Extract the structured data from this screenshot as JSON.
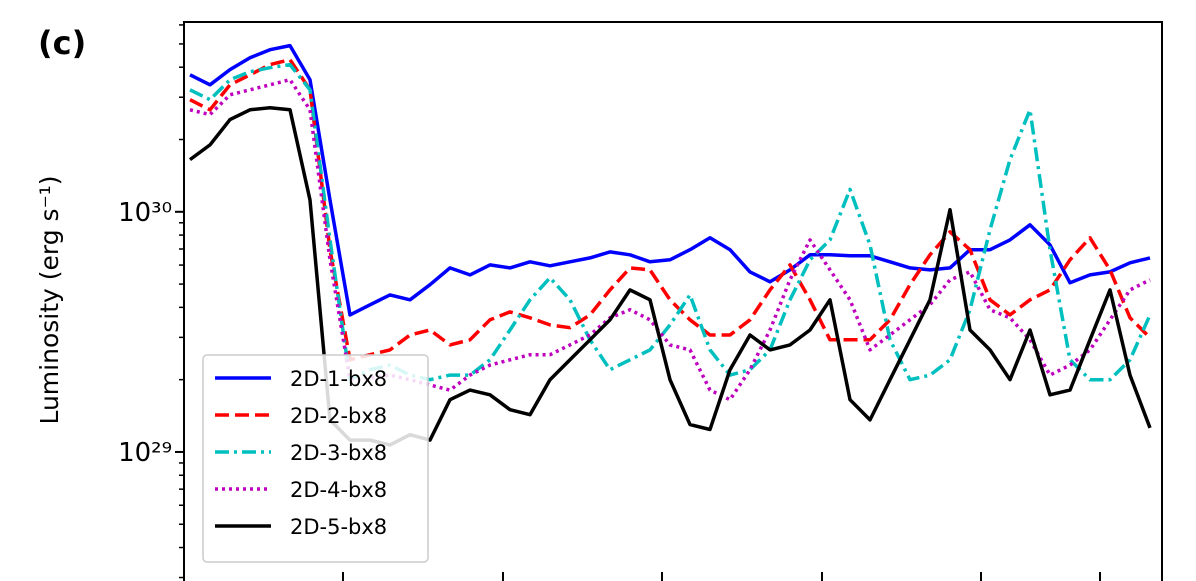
{
  "chart_data": {
    "type": "line",
    "title": "(c)",
    "ylabel": "Luminosity (erg s⁻¹)",
    "yscale": "log",
    "ylim": [
      2.93e+28,
      6.17e+30
    ],
    "yticks": [
      {
        "value": 1e+29,
        "label": "10²⁹"
      },
      {
        "value": 1e+30,
        "label": "10³⁰"
      }
    ],
    "legend": "lower left",
    "series": [
      {
        "name": "2D-1-bx8",
        "color": "#0000ff",
        "linestyle": "solid",
        "values": [
          3.72e+30,
          3.38e+30,
          3.91e+30,
          4.38e+30,
          4.73e+30,
          4.92e+30,
          3.55e+30,
          1.12e+30,
          3.72e+29,
          4.1e+29,
          4.51e+29,
          4.3e+29,
          4.97e+29,
          5.84e+29,
          5.46e+29,
          6.01e+29,
          5.84e+29,
          6.19e+29,
          5.96e+29,
          6.19e+29,
          6.43e+29,
          6.81e+29,
          6.62e+29,
          6.19e+29,
          6.31e+29,
          6.95e+29,
          7.79e+29,
          6.95e+29,
          5.62e+29,
          5.11e+29,
          5.73e+29,
          6.62e+29,
          6.62e+29,
          6.56e+29,
          6.56e+29,
          6.19e+29,
          5.84e+29,
          5.73e+29,
          5.84e+29,
          6.95e+29,
          6.95e+29,
          7.64e+29,
          8.83e+29,
          7.28e+29,
          5.06e+29,
          5.46e+29,
          5.62e+29,
          6.13e+29,
          6.43e+29
        ]
      },
      {
        "name": "2D-2-bx8",
        "color": "#ff0000",
        "linestyle": "dashed",
        "values": [
          2.93e+30,
          2.66e+30,
          3.38e+30,
          3.72e+30,
          4.1e+30,
          4.3e+30,
          3.22e+30,
          6.95e+29,
          2.42e+29,
          2.54e+29,
          2.66e+29,
          3.07e+29,
          3.22e+29,
          2.79e+29,
          2.93e+29,
          3.55e+29,
          3.83e+29,
          3.62e+29,
          3.38e+29,
          3.29e+29,
          3.72e+29,
          4.73e+29,
          5.84e+29,
          5.73e+29,
          4.3e+29,
          3.55e+29,
          3.07e+29,
          3.07e+29,
          3.55e+29,
          4.73e+29,
          6.01e+29,
          4.3e+29,
          2.93e+29,
          2.93e+29,
          2.93e+29,
          3.55e+29,
          4.97e+29,
          6.62e+29,
          8.25e+29,
          6.95e+29,
          4.3e+29,
          3.72e+29,
          4.3e+29,
          4.73e+29,
          6.31e+29,
          7.79e+29,
          5.73e+29,
          3.62e+29,
          2.99e+29
        ]
      },
      {
        "name": "2D-3-bx8",
        "color": "#00bfbf",
        "linestyle": "dashdot",
        "values": [
          3.22e+30,
          2.93e+30,
          3.55e+30,
          3.83e+30,
          3.98e+30,
          4.1e+30,
          3.22e+30,
          7.64e+29,
          2e+29,
          2.2e+29,
          2.3e+29,
          2.09e+29,
          2e+29,
          2.09e+29,
          2.09e+29,
          2.42e+29,
          3.22e+29,
          4.3e+29,
          5.31e+29,
          4.3e+29,
          2.93e+29,
          2.2e+29,
          2.42e+29,
          2.66e+29,
          3.38e+29,
          4.51e+29,
          2.66e+29,
          2.09e+29,
          2.2e+29,
          2.66e+29,
          4.3e+29,
          6.31e+29,
          7.64e+29,
          1.24e+30,
          7.28e+29,
          2.93e+29,
          2e+29,
          2.09e+29,
          2.42e+29,
          3.91e+29,
          8.41e+29,
          1.65e+30,
          2.66e+30,
          6.95e+29,
          2.42e+29,
          2e+29,
          2e+29,
          2.42e+29,
          3.72e+29
        ]
      },
      {
        "name": "2D-4-bx8",
        "color": "#bf00bf",
        "linestyle": "dotted",
        "values": [
          2.66e+30,
          2.54e+30,
          3.07e+30,
          3.22e+30,
          3.38e+30,
          3.55e+30,
          2.66e+30,
          6.31e+29,
          2e+29,
          2.03e+29,
          2.09e+29,
          2e+29,
          1.9e+29,
          1.81e+29,
          2.09e+29,
          2.3e+29,
          2.42e+29,
          2.54e+29,
          2.54e+29,
          2.79e+29,
          3.07e+29,
          3.62e+29,
          3.91e+29,
          3.55e+29,
          2.79e+29,
          2.66e+29,
          1.81e+29,
          1.65e+29,
          2.2e+29,
          3.22e+29,
          5.21e+29,
          7.64e+29,
          5.73e+29,
          4.3e+29,
          2.66e+29,
          3.07e+29,
          3.55e+29,
          4.1e+29,
          5.21e+29,
          5.62e+29,
          3.91e+29,
          3.62e+29,
          2.93e+29,
          2.09e+29,
          2.3e+29,
          2.66e+29,
          3.55e+29,
          4.73e+29,
          5.21e+29
        ]
      },
      {
        "name": "2D-5-bx8",
        "color": "#000000",
        "linestyle": "solid",
        "values": [
          1.65e+30,
          1.9e+30,
          2.42e+30,
          2.66e+30,
          2.71e+30,
          2.66e+30,
          1.12e+30,
          1.36e+29,
          1.12e+29,
          1.12e+29,
          1.07e+29,
          1.18e+29,
          1.12e+29,
          1.65e+29,
          1.81e+29,
          1.73e+29,
          1.5e+29,
          1.43e+29,
          2e+29,
          2.42e+29,
          2.93e+29,
          3.55e+29,
          4.73e+29,
          4.3e+29,
          2e+29,
          1.3e+29,
          1.24e+29,
          2.2e+29,
          3.07e+29,
          2.66e+29,
          2.79e+29,
          3.22e+29,
          4.3e+29,
          1.65e+29,
          1.36e+29,
          2e+29,
          2.93e+29,
          4.3e+29,
          1.02e+30,
          3.22e+29,
          2.66e+29,
          2e+29,
          3.22e+29,
          1.73e+29,
          1.81e+29,
          2.93e+29,
          4.73e+29,
          2.09e+29,
          1.26e+29
        ]
      }
    ]
  }
}
